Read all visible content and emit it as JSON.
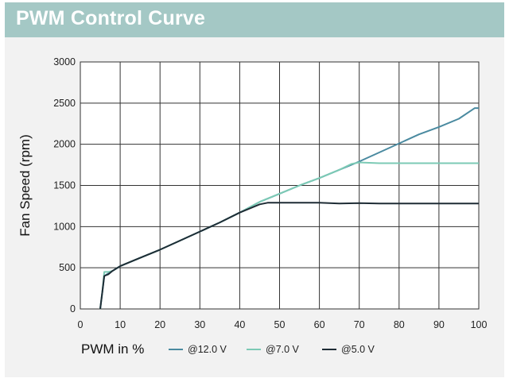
{
  "title": "PWM Control Curve",
  "chart_data": {
    "type": "line",
    "title": "PWM Control Curve",
    "xlabel": "PWM in %",
    "ylabel": "Fan Speed (rpm)",
    "xlim": [
      0,
      100
    ],
    "ylim": [
      0,
      3000
    ],
    "x_ticks": [
      "0",
      "10",
      "20",
      "30",
      "40",
      "50",
      "60",
      "70",
      "80",
      "90",
      "100"
    ],
    "y_ticks": [
      "0",
      "500",
      "1000",
      "1500",
      "2000",
      "2500",
      "3000"
    ],
    "grid": true,
    "legend_position": "bottom",
    "series": [
      {
        "name": "@12.0 V",
        "color": "#4a8aa0",
        "x": [
          5,
          5.5,
          6,
          7,
          8,
          10,
          15,
          20,
          25,
          30,
          35,
          40,
          45,
          50,
          55,
          60,
          65,
          70,
          75,
          80,
          85,
          90,
          95,
          99,
          100
        ],
        "y": [
          0,
          200,
          400,
          430,
          460,
          520,
          620,
          720,
          830,
          940,
          1050,
          1170,
          1300,
          1400,
          1500,
          1590,
          1690,
          1790,
          1900,
          2010,
          2120,
          2210,
          2310,
          2440,
          2440
        ]
      },
      {
        "name": "@7.0 V",
        "color": "#7ccab5",
        "x": [
          5,
          5.5,
          6,
          7,
          8,
          10,
          15,
          20,
          25,
          30,
          35,
          40,
          45,
          50,
          55,
          60,
          65,
          68,
          70,
          75,
          80,
          85,
          90,
          95,
          100
        ],
        "y": [
          0,
          200,
          450,
          450,
          460,
          520,
          620,
          720,
          830,
          940,
          1050,
          1170,
          1300,
          1400,
          1500,
          1590,
          1690,
          1760,
          1780,
          1770,
          1770,
          1770,
          1770,
          1770,
          1770
        ]
      },
      {
        "name": "@5.0 V",
        "color": "#1e2c35",
        "x": [
          5,
          5.5,
          6,
          7,
          8,
          10,
          15,
          20,
          25,
          30,
          35,
          40,
          45,
          47,
          50,
          55,
          60,
          65,
          70,
          75,
          80,
          85,
          90,
          95,
          100
        ],
        "y": [
          0,
          200,
          400,
          420,
          460,
          520,
          620,
          720,
          830,
          940,
          1050,
          1170,
          1270,
          1290,
          1290,
          1290,
          1290,
          1280,
          1285,
          1280,
          1280,
          1280,
          1280,
          1280,
          1280
        ]
      }
    ]
  }
}
